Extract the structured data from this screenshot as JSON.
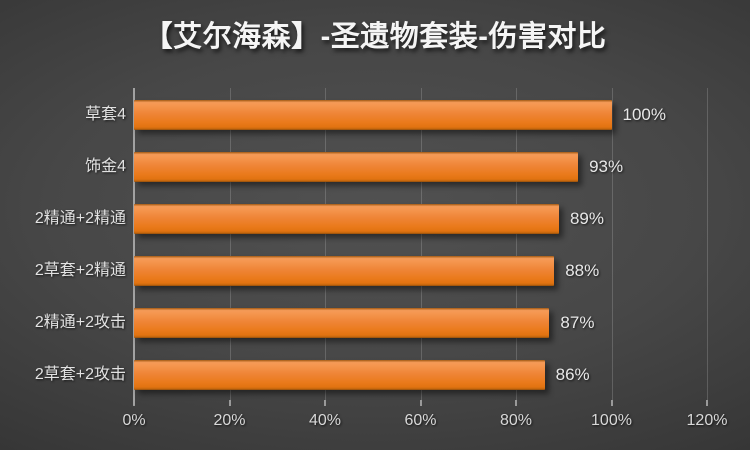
{
  "title": "【艾尔海森】-圣遗物套装-伤害对比",
  "colors": {
    "background_center": "#4f4f4f",
    "background_edge": "#262626",
    "bar_top": "#f59b58",
    "bar_main": "#ef8537",
    "bar_bottom": "#e27311",
    "axis_line": "#a2a2a2",
    "gridline_alpha": "rgba(255,255,255,0.17)",
    "label_text": "#e2e2e2",
    "title_text": "#f5f5f5"
  },
  "chart_data": {
    "type": "bar",
    "orientation": "horizontal",
    "title": "【艾尔海森】-圣遗物套装-伤害对比",
    "categories": [
      "草套4",
      "饰金4",
      "2精通+2精通",
      "2草套+2精通",
      "2精通+2攻击",
      "2草套+2攻击"
    ],
    "values": [
      100,
      93,
      89,
      88,
      87,
      86
    ],
    "value_labels": [
      "100%",
      "93%",
      "89%",
      "88%",
      "87%",
      "86%"
    ],
    "x_ticks": [
      "0%",
      "20%",
      "40%",
      "60%",
      "80%",
      "100%",
      "120%"
    ],
    "x_tick_values": [
      0,
      20,
      40,
      60,
      80,
      100,
      120
    ],
    "xlim": [
      0,
      120
    ],
    "xlabel": "",
    "ylabel": "",
    "grid": true,
    "legend": false,
    "value_labels_position": "end-outside"
  }
}
